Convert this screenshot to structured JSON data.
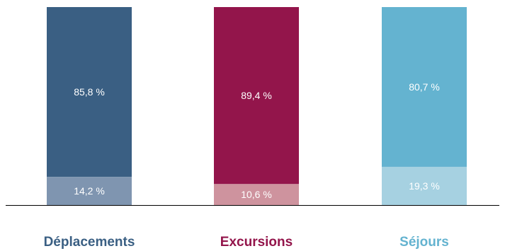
{
  "chart_data": {
    "type": "bar",
    "stacked": true,
    "categories": [
      "Déplacements",
      "Excursions",
      "Séjours"
    ],
    "series": [
      {
        "values": [
          85.8,
          89.4,
          80.7
        ]
      },
      {
        "values": [
          14.2,
          10.6,
          19.3
        ]
      }
    ],
    "data_labels": [
      [
        "85,8 %",
        "89,4 %",
        "80,7 %"
      ],
      [
        "14,2 %",
        "10,6 %",
        "19,3 %"
      ]
    ],
    "colors": {
      "top": [
        "#3a5f83",
        "#93154b",
        "#64b3d0"
      ],
      "bottom": [
        "#7f95b0",
        "#ce939e",
        "#a6d1e1"
      ],
      "category_text": [
        "#3a5f83",
        "#93154b",
        "#64b3d0"
      ]
    },
    "ylim": [
      0,
      100
    ],
    "grid": false,
    "legend": "none"
  }
}
